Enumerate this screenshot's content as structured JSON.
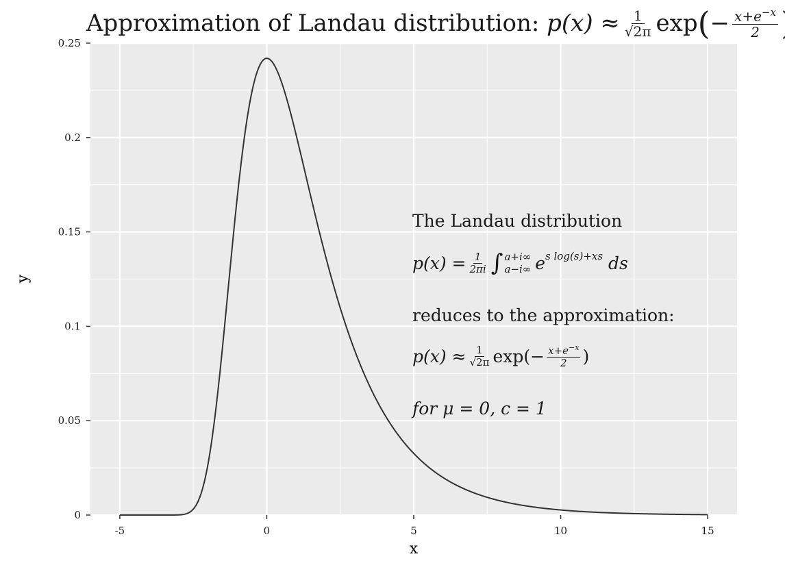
{
  "title": {
    "lead": "Approximation of Landau distribution:",
    "lhs": "p(x) ≈",
    "frac_num": "1",
    "frac_den": "√2π",
    "exp": "exp",
    "open": "(",
    "minus": "−",
    "inner_num": "x+e",
    "inner_sup": "−x",
    "inner_den": "2",
    "close": ")"
  },
  "annotation": {
    "line1": "The Landau distribution",
    "line2_lhs": "p(x) =",
    "line2_frac_num": "1",
    "line2_frac_den": "2πi",
    "line2_int": "∫",
    "line2_upper": "a+i∞",
    "line2_lower": "a−i∞",
    "line2_base": "e",
    "line2_sup": "s log(s)+xs",
    "line2_ds": "ds",
    "line3": "reduces to the approximation:",
    "line4_lhs": "p(x) ≈",
    "line4_frac_num": "1",
    "line4_frac_den": "√2π",
    "line4_exp": "exp",
    "line4_open": "(",
    "line4_minus": "−",
    "line4_inner_num": "x+e",
    "line4_inner_sup": "−x",
    "line4_inner_den": "2",
    "line4_close": ")",
    "line5": "for μ = 0, c = 1"
  },
  "chart_data": {
    "type": "line",
    "xlabel": "x",
    "ylabel": "y",
    "xlim": [
      -6.0,
      16.0
    ],
    "ylim": [
      0,
      0.25
    ],
    "x_ticks": [
      -5,
      0,
      5,
      10,
      15
    ],
    "x_tick_labels": [
      "-5",
      "0",
      "5",
      "10",
      "15"
    ],
    "y_ticks": [
      0,
      0.05,
      0.1,
      0.15,
      0.2,
      0.25
    ],
    "y_tick_labels": [
      "0",
      "0.05",
      "0.1",
      "0.15",
      "0.2",
      "0.25"
    ],
    "grid": true,
    "legend": "none",
    "series": [
      {
        "function": "exp(-(x+exp(-x))/2)/sqrt(2*pi)",
        "x_range": [
          -5,
          15
        ],
        "x": [
          -5,
          -4,
          -3,
          -2.5,
          -2,
          -1.5,
          -1,
          -0.5,
          0,
          0.5,
          1,
          1.5,
          2,
          3,
          4,
          5,
          6,
          7,
          8,
          10,
          12,
          15
        ],
        "y": [
          0.0,
          0.0,
          0.0013,
          0.0103,
          0.0403,
          0.0975,
          0.166,
          0.2175,
          0.242,
          0.2388,
          0.2146,
          0.18,
          0.144,
          0.0862,
          0.0489,
          0.0272,
          0.0149,
          0.0081,
          0.0044,
          0.0013,
          0.0004,
          0.0
        ]
      }
    ],
    "colors": {
      "panel": "#ebebeb",
      "grid": "#ffffff",
      "line": "#333333",
      "axis_text": "#1a1a1a"
    }
  }
}
